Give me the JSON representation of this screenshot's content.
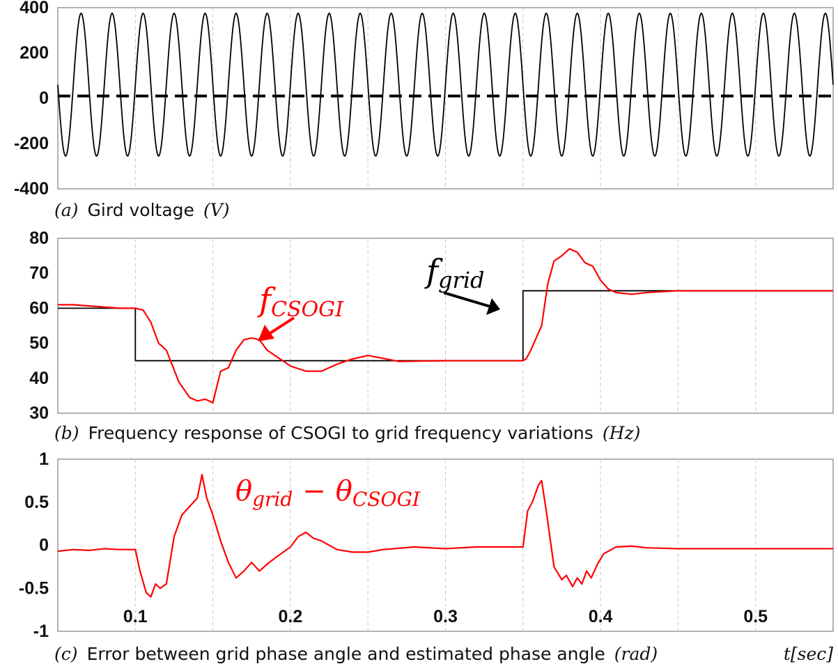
{
  "chart_data": [
    {
      "type": "line",
      "caption": {
        "prefix": "(a)",
        "text": "Gird voltage",
        "unit": "(V)"
      },
      "xlim": [
        0.05,
        0.55
      ],
      "ylim": [
        -400,
        400
      ],
      "yticks": [
        400,
        200,
        0,
        -200,
        -400
      ],
      "ytick_labels": [
        "400",
        "200",
        "0",
        "-200",
        "-400"
      ],
      "grid": "dashed-vertical",
      "series": [
        {
          "kind": "sine",
          "frequency_hz": 50,
          "max": 375,
          "min": -255,
          "color": "#000000"
        },
        {
          "kind": "constant",
          "value": 10,
          "style": "dashed",
          "color": "#000000"
        }
      ]
    },
    {
      "type": "line",
      "caption": {
        "prefix": "(b)",
        "text": "Frequency response of CSOGI to grid frequency variations",
        "unit": "(Hz)"
      },
      "xlim": [
        0.05,
        0.55
      ],
      "ylim": [
        30,
        80
      ],
      "yticks": [
        80,
        70,
        60,
        50,
        40,
        30
      ],
      "ytick_labels": [
        "80",
        "70",
        "60",
        "50",
        "40",
        "30"
      ],
      "grid": "dashed-vertical",
      "annotations": [
        {
          "base": "f",
          "subscript": "grid",
          "color": "#000000"
        },
        {
          "base": "f",
          "subscript": "CSOGI",
          "color": "#ff0000"
        }
      ],
      "series": [
        {
          "name": "f_grid",
          "color": "#000000",
          "x": [
            0.05,
            0.1,
            0.1,
            0.35,
            0.35,
            0.55
          ],
          "y": [
            60,
            60,
            45,
            45,
            65,
            65
          ]
        },
        {
          "name": "f_CSOGI",
          "color": "#ff0000",
          "x": [
            0.05,
            0.06,
            0.075,
            0.09,
            0.1,
            0.105,
            0.11,
            0.115,
            0.12,
            0.128,
            0.135,
            0.14,
            0.145,
            0.15,
            0.155,
            0.16,
            0.165,
            0.17,
            0.175,
            0.18,
            0.185,
            0.19,
            0.2,
            0.21,
            0.22,
            0.23,
            0.24,
            0.25,
            0.27,
            0.3,
            0.33,
            0.345,
            0.35,
            0.352,
            0.355,
            0.358,
            0.362,
            0.366,
            0.37,
            0.375,
            0.38,
            0.385,
            0.39,
            0.395,
            0.4,
            0.405,
            0.41,
            0.42,
            0.43,
            0.45,
            0.5,
            0.55
          ],
          "y": [
            61,
            61,
            60.5,
            60,
            60,
            59.5,
            56,
            50,
            48,
            39,
            34.5,
            33.5,
            34,
            33,
            42,
            43,
            48,
            51,
            51.5,
            51,
            48,
            46.5,
            43.5,
            42,
            42,
            44,
            45.5,
            46.5,
            44.8,
            45,
            45,
            45,
            45,
            45.5,
            48,
            51,
            55,
            67,
            73.5,
            75,
            77,
            76,
            73,
            72,
            68,
            65.5,
            64.5,
            64,
            64.5,
            65,
            65,
            65
          ]
        }
      ]
    },
    {
      "type": "line",
      "caption": {
        "prefix": "(c)",
        "text": "Error between grid phase angle and estimated phase angle",
        "unit": "(rad)"
      },
      "xlabel": "t[sec]",
      "xlim": [
        0.05,
        0.55
      ],
      "ylim": [
        -1,
        1
      ],
      "yticks": [
        1,
        0.5,
        0,
        -0.5,
        -1
      ],
      "ytick_labels": [
        "1",
        "0.5",
        "0",
        "-0.5",
        "-1"
      ],
      "xticks": [
        0.1,
        0.2,
        0.3,
        0.4,
        0.5
      ],
      "xtick_labels": [
        "0.1",
        "0.2",
        "0.3",
        "0.4",
        "0.5"
      ],
      "grid": "dashed-vertical",
      "annotations": [
        {
          "base": "θ",
          "subscript": "grid",
          "operator": "−",
          "base2": "θ",
          "subscript2": "CSOGI",
          "color": "#ff0000"
        }
      ],
      "series": [
        {
          "name": "θ_grid − θ_CSOGI",
          "color": "#ff0000",
          "x": [
            0.05,
            0.06,
            0.07,
            0.08,
            0.09,
            0.1,
            0.103,
            0.107,
            0.11,
            0.113,
            0.116,
            0.12,
            0.125,
            0.13,
            0.135,
            0.14,
            0.143,
            0.146,
            0.15,
            0.155,
            0.16,
            0.165,
            0.17,
            0.175,
            0.18,
            0.185,
            0.19,
            0.2,
            0.205,
            0.21,
            0.215,
            0.22,
            0.23,
            0.24,
            0.25,
            0.26,
            0.28,
            0.3,
            0.32,
            0.34,
            0.35,
            0.353,
            0.356,
            0.36,
            0.362,
            0.365,
            0.37,
            0.375,
            0.378,
            0.382,
            0.385,
            0.388,
            0.391,
            0.394,
            0.398,
            0.402,
            0.41,
            0.42,
            0.43,
            0.45,
            0.5,
            0.55
          ],
          "y": [
            -0.07,
            -0.05,
            -0.06,
            -0.04,
            -0.05,
            -0.05,
            -0.3,
            -0.55,
            -0.6,
            -0.45,
            -0.5,
            -0.45,
            0.1,
            0.35,
            0.45,
            0.55,
            0.82,
            0.55,
            0.35,
            0.05,
            -0.2,
            -0.38,
            -0.3,
            -0.2,
            -0.3,
            -0.22,
            -0.15,
            -0.02,
            0.1,
            0.15,
            0.08,
            0.05,
            -0.05,
            -0.08,
            -0.08,
            -0.05,
            -0.02,
            -0.04,
            -0.02,
            -0.02,
            -0.02,
            0.4,
            0.5,
            0.7,
            0.75,
            0.4,
            -0.25,
            -0.4,
            -0.35,
            -0.48,
            -0.38,
            -0.45,
            -0.3,
            -0.38,
            -0.22,
            -0.1,
            -0.02,
            -0.01,
            -0.03,
            -0.04,
            -0.04,
            -0.04
          ]
        }
      ]
    }
  ]
}
